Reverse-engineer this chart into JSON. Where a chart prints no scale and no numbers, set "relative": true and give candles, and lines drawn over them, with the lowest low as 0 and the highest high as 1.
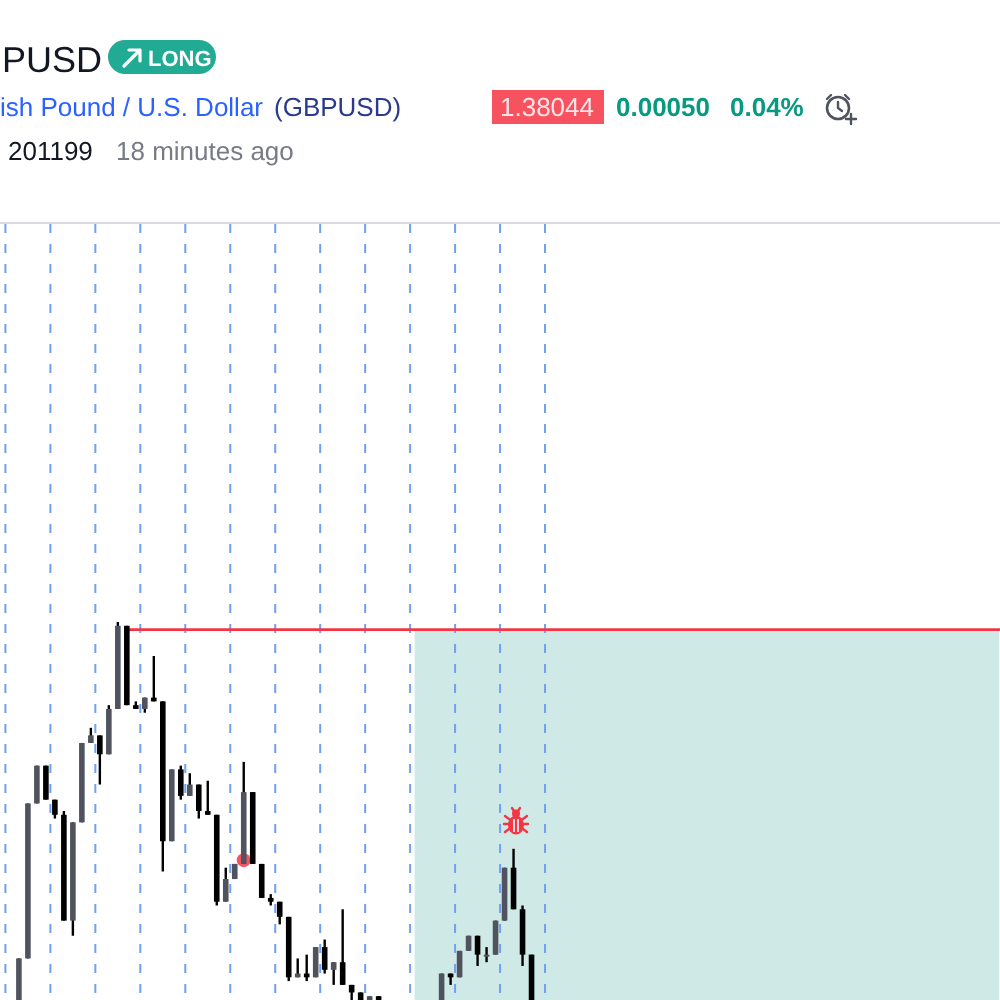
{
  "chart_data": {
    "type": "candlestick",
    "title": "PUSD",
    "subtitle": "ish Pound / U.S. Dollar",
    "annotations": [
      "LONG",
      "(GBPUSD)",
      "1.38044",
      "0.00050",
      "0.04%",
      "201199",
      "18 minutes ago"
    ],
    "relative": true,
    "color": "#000000",
    "categories": [
      null,
      null,
      null,
      null,
      null,
      null,
      null,
      null,
      null,
      null,
      null,
      null,
      null,
      null,
      null,
      null,
      null,
      null,
      null,
      null,
      null,
      null,
      null,
      null,
      null,
      null,
      null,
      null,
      null,
      null,
      null,
      null,
      null,
      null,
      null,
      null,
      null,
      null,
      null,
      null,
      null,
      null,
      null,
      null,
      null,
      null,
      null,
      null,
      null,
      null,
      null,
      null,
      null,
      null,
      null,
      null,
      null,
      null,
      null,
      null,
      null,
      null,
      null,
      null,
      null,
      null,
      null,
      null,
      null,
      null,
      null,
      null,
      null,
      null,
      null,
      null,
      null,
      null,
      null,
      null,
      null,
      null,
      null,
      null,
      null,
      null,
      null,
      null,
      null,
      null,
      null,
      null,
      null,
      null,
      null,
      null,
      null,
      null,
      null,
      null,
      null,
      null,
      null,
      null,
      null,
      null,
      null,
      null,
      null,
      null,
      null,
      null
    ],
    "ohlc": [
      null,
      null,
      [
        0,
        0.11,
        0,
        0.11
      ],
      [
        0.11,
        0.52,
        0.11,
        0.52
      ],
      [
        0.52,
        0.62,
        0.52,
        0.62
      ],
      [
        0.62,
        0.62,
        0.53,
        0.53
      ],
      [
        0.53,
        0.53,
        0.48,
        0.49
      ],
      [
        0.49,
        0.5,
        0.21,
        0.21
      ],
      [
        0.21,
        0.47,
        0.17,
        0.47
      ],
      [
        0.47,
        0.68,
        0.47,
        0.68
      ],
      [
        0.68,
        0.72,
        0.68,
        0.7
      ],
      [
        0.7,
        0.7,
        0.57,
        0.65
      ],
      [
        0.65,
        0.78,
        0.65,
        0.77
      ],
      [
        0.77,
        1.0,
        0.77,
        0.99
      ],
      [
        0.99,
        0.99,
        0.78,
        0.78
      ],
      [
        0.78,
        0.79,
        0.77,
        0.77
      ],
      [
        0.77,
        0.8,
        0.76,
        0.8
      ],
      [
        0.8,
        0.91,
        0.79,
        0.79
      ],
      [
        0.79,
        0.79,
        0.34,
        0.42
      ],
      [
        0.42,
        0.61,
        0.42,
        0.61
      ],
      [
        0.61,
        0.62,
        0.53,
        0.54
      ],
      [
        0.54,
        0.6,
        0.54,
        0.57
      ],
      [
        0.57,
        0.57,
        0.48,
        0.5
      ],
      [
        0.5,
        0.58,
        0.49,
        0.49
      ],
      [
        0.49,
        0.49,
        0.25,
        0.26
      ],
      [
        0.26,
        0.35,
        0.26,
        0.32
      ],
      [
        0.32,
        0.36,
        0.32,
        0.36
      ],
      [
        0.36,
        0.63,
        0.36,
        0.55
      ],
      [
        0.55,
        0.55,
        0.36,
        0.36
      ],
      [
        0.36,
        0.36,
        0.27,
        0.27
      ],
      [
        0.27,
        0.28,
        0.25,
        0.26
      ],
      [
        0.26,
        0.26,
        0.2,
        0.22
      ],
      [
        0.22,
        0.22,
        0.05,
        0.06
      ],
      [
        0.06,
        0.11,
        0.06,
        0.07
      ],
      [
        0.07,
        0.12,
        0.05,
        0.06
      ],
      [
        0.06,
        0.14,
        0.06,
        0.14
      ],
      [
        0.14,
        0.16,
        0.07,
        0.08
      ],
      [
        0.08,
        0.1,
        0.04,
        0.1
      ],
      [
        0.1,
        0.24,
        0.04,
        0.04
      ],
      [
        0.04,
        0.04,
        0,
        0.02
      ],
      [
        0.02,
        0.02,
        0,
        0
      ],
      [
        0,
        0.01,
        0,
        0.01
      ],
      [
        0.01,
        0.01,
        0,
        0
      ],
      null,
      null,
      null,
      null,
      null,
      null,
      [
        0,
        0.07,
        0,
        0.07
      ],
      [
        0.07,
        0.07,
        0.04,
        0.06
      ],
      [
        0.06,
        0.13,
        0.06,
        0.13
      ],
      [
        0.13,
        0.17,
        0.13,
        0.17
      ],
      [
        0.17,
        0.17,
        0.09,
        0.12
      ],
      [
        0.12,
        0.14,
        0.1,
        0.12
      ],
      [
        0.12,
        0.21,
        0.12,
        0.21
      ],
      [
        0.21,
        0.35,
        0.21,
        0.35
      ],
      [
        0.35,
        0.4,
        0.24,
        0.24
      ],
      [
        0.24,
        0.25,
        0.09,
        0.12
      ],
      [
        0.12,
        0.12,
        0,
        0
      ],
      null,
      null,
      null,
      null,
      null,
      null,
      null,
      null,
      null,
      null,
      null,
      null,
      null,
      null,
      null,
      null,
      null,
      null,
      null,
      null,
      null,
      null,
      null,
      null,
      null,
      null,
      null,
      null,
      null,
      null,
      null,
      null,
      null,
      null,
      null,
      null,
      null,
      null,
      null,
      null,
      null,
      null,
      null,
      null,
      null,
      null,
      null,
      null,
      null,
      null,
      null,
      null
    ],
    "colors": [
      null,
      null,
      "#50535e",
      "#50535e",
      "#50535e",
      "#000000",
      "#000000",
      "#000000",
      "#50535e",
      "#50535e",
      "#50535e",
      "#000000",
      "#50535e",
      "#50535e",
      "#000000",
      "#000000",
      "#50535e",
      "#000000",
      "#000000",
      "#50535e",
      "#000000",
      "#50535e",
      "#000000",
      "#000000",
      "#000000",
      "#50535e",
      "#50535e",
      "#50535e",
      "#000000",
      "#000000",
      "#000000",
      "#000000",
      "#000000",
      "#50535e",
      "#000000",
      "#50535e",
      "#000000",
      "#50535e",
      "#000000",
      "#000000",
      "#000000",
      "#50535e",
      "#000000",
      null,
      null,
      null,
      null,
      null,
      null,
      "#50535e",
      "#000000",
      "#50535e",
      "#50535e",
      "#000000",
      "#50535e",
      "#50535e",
      "#50535e",
      "#000000",
      "#000000",
      "#000000",
      null,
      null,
      null,
      null,
      null,
      null,
      null,
      null,
      null,
      null,
      null,
      null,
      null,
      null,
      null,
      null,
      null,
      null,
      null,
      null,
      null,
      null,
      null,
      null,
      null,
      null,
      null,
      null,
      null,
      null,
      null,
      null,
      null,
      null,
      null,
      null,
      null,
      null,
      null,
      null,
      null,
      null,
      null,
      null,
      null,
      null,
      null,
      null,
      null,
      null,
      null,
      null
    ],
    "series": [
      {
        "type": "area",
        "color": "#cfe9e6",
        "values": [
          null,
          null,
          null,
          null,
          null,
          null,
          null,
          null,
          null,
          null,
          null,
          null,
          null,
          null,
          null,
          null,
          null,
          null,
          null,
          null,
          null,
          null,
          null,
          null,
          null,
          null,
          null,
          null,
          null,
          null,
          null,
          null,
          null,
          null,
          null,
          null,
          null,
          null,
          null,
          null,
          null,
          null,
          null,
          null,
          null,
          null,
          0.98,
          0.98,
          0.98,
          0.98,
          0.98,
          0.98,
          0.98,
          0.98,
          0.98,
          0.98,
          0.98,
          0.98,
          0.98,
          0.98,
          0.98,
          0.98,
          0.98,
          0.98,
          0.98,
          0.98,
          0.98,
          0.98,
          0.98,
          0.98,
          0.98,
          0.98,
          0.98,
          0.98,
          0.98,
          0.98,
          0.98,
          0.98,
          0.98,
          0.98,
          0.98,
          0.98,
          0.98,
          0.98,
          0.98,
          0.98,
          0.98,
          0.98,
          0.98,
          0.98,
          0.98,
          0.98,
          0.98,
          0.98,
          0.98,
          0.98,
          0.98,
          0.98,
          0.98,
          0.98,
          0.98,
          0.98,
          0.98,
          0.98,
          0.98,
          0.98,
          0.98,
          0.98,
          0.98,
          0.98,
          0.98,
          0.98
        ]
      },
      {
        "type": "line",
        "color": "#f23645",
        "values": [
          null,
          null,
          null,
          null,
          null,
          null,
          null,
          null,
          null,
          null,
          null,
          null,
          null,
          null,
          0.98,
          0.98,
          0.98,
          0.98,
          0.98,
          0.98,
          0.98,
          0.98,
          0.98,
          0.98,
          0.98,
          0.98,
          0.98,
          0.98,
          0.98,
          0.98,
          0.98,
          0.98,
          0.98,
          0.98,
          0.98,
          0.98,
          0.98,
          0.98,
          0.98,
          0.98,
          0.98,
          0.98,
          0.98,
          0.98,
          0.98,
          0.98,
          0.98,
          0.98,
          0.98,
          0.98,
          0.98,
          0.98,
          0.98,
          0.98,
          0.98,
          0.98,
          0.98,
          0.98,
          0.98,
          0.98,
          0.98,
          0.98,
          0.98,
          0.98,
          0.98,
          0.98,
          0.98,
          0.98,
          0.98,
          0.98,
          0.98,
          0.98,
          0.98,
          0.98,
          0.98,
          0.98,
          0.98,
          0.98,
          0.98,
          0.98,
          0.98,
          0.98,
          0.98,
          0.98,
          0.98,
          0.98,
          0.98,
          0.98,
          0.98,
          0.98,
          0.98,
          0.98,
          0.98,
          0.98,
          0.98,
          0.98,
          0.98,
          0.98,
          0.98,
          0.98,
          0.98,
          0.98,
          0.98,
          0.98,
          0.98,
          0.98,
          0.98,
          0.98,
          0.98,
          0.98,
          0.98,
          0.98
        ]
      },
      {
        "type": "scatter",
        "color": "#f7525f",
        "values": [
          null,
          null,
          null,
          null,
          null,
          null,
          null,
          null,
          null,
          null,
          null,
          null,
          null,
          null,
          null,
          null,
          null,
          null,
          null,
          null,
          null,
          null,
          null,
          null,
          null,
          null,
          null,
          0.37,
          null,
          null,
          null,
          null,
          null,
          null,
          null,
          null,
          null,
          null,
          null,
          null,
          null,
          null,
          null,
          null,
          null,
          null,
          null,
          null,
          null,
          null,
          null,
          null,
          null,
          null,
          null,
          null,
          null,
          null,
          null,
          null,
          null,
          null,
          null,
          null,
          null,
          null,
          null,
          null,
          null,
          null,
          null,
          null,
          null,
          null,
          null,
          null,
          null,
          null,
          null,
          null,
          null,
          null,
          null,
          null,
          null,
          null,
          null,
          null,
          null,
          null,
          null,
          null,
          null,
          null,
          null,
          null,
          null,
          null,
          null,
          null,
          null,
          null,
          null,
          null,
          null,
          null,
          null,
          null,
          null,
          null,
          null,
          null
        ]
      }
    ]
  }
}
